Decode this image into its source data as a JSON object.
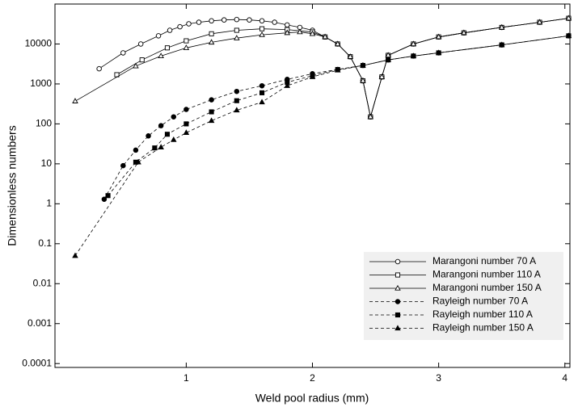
{
  "chart_data": {
    "type": "line",
    "log_y": true,
    "xlabel": "Weld pool radius (mm)",
    "ylabel": "Dimensionless numbers",
    "xlim": [
      -0.04,
      4.04
    ],
    "ylim": [
      8e-05,
      100000
    ],
    "xticks": [
      1,
      2,
      3,
      4
    ],
    "yticks": [
      0.0001,
      0.001,
      0.01,
      0.1,
      1,
      10,
      100,
      1000,
      10000
    ],
    "legend": "lower right",
    "series": [
      {
        "name": "Marangoni number 70 A",
        "color": "#000000",
        "marker": "circle",
        "filled": false,
        "line_style": "solid",
        "x": [
          0.31,
          0.5,
          0.64,
          0.78,
          0.87,
          0.95,
          1.02,
          1.1,
          1.2,
          1.3,
          1.4,
          1.5,
          1.6,
          1.7,
          1.8,
          1.9,
          2.0,
          2.1,
          2.2,
          2.3,
          2.4,
          2.46,
          2.55,
          2.6,
          2.8,
          3.0,
          3.2,
          3.5,
          3.8,
          4.03
        ],
        "values": [
          2400,
          6000,
          10000,
          16000,
          22000,
          27000,
          32000,
          35000,
          38000,
          40000,
          41000,
          40000,
          38000,
          35000,
          30000,
          26000,
          22000,
          15000,
          10000,
          4800,
          1200,
          150,
          1500,
          5200,
          10000,
          15000,
          19000,
          26000,
          35000,
          44000
        ]
      },
      {
        "name": "Marangoni number 110 A",
        "color": "#000000",
        "marker": "square",
        "filled": false,
        "line_style": "solid",
        "x": [
          0.45,
          0.65,
          0.85,
          1.0,
          1.2,
          1.4,
          1.6,
          1.8,
          2.0,
          2.1,
          2.2,
          2.3,
          2.4,
          2.46,
          2.55,
          2.6,
          2.8,
          3.0,
          3.2,
          3.5,
          3.8,
          4.03
        ],
        "values": [
          1700,
          4000,
          8000,
          12000,
          18000,
          22000,
          24000,
          23000,
          20000,
          15000,
          10000,
          4800,
          1200,
          150,
          1500,
          5200,
          10000,
          15000,
          19000,
          26000,
          35000,
          44000
        ]
      },
      {
        "name": "Marangoni number 150 A",
        "color": "#000000",
        "marker": "triangle",
        "filled": false,
        "line_style": "solid",
        "x": [
          0.12,
          0.6,
          0.8,
          1.0,
          1.2,
          1.4,
          1.6,
          1.8,
          1.9,
          2.0,
          2.1,
          2.2,
          2.3,
          2.4,
          2.46,
          2.55,
          2.6,
          2.8,
          3.0,
          3.2,
          3.5,
          3.8,
          4.03
        ],
        "values": [
          370,
          2800,
          5000,
          8000,
          11000,
          14000,
          17000,
          19000,
          20000,
          18000,
          15000,
          10000,
          4800,
          1200,
          150,
          1500,
          5200,
          10000,
          15000,
          19000,
          26000,
          35000,
          44000
        ]
      },
      {
        "name": "Rayleigh number 70 A",
        "color": "#000000",
        "marker": "circle",
        "filled": true,
        "line_style": "dashed",
        "x": [
          0.35,
          0.5,
          0.6,
          0.7,
          0.8,
          0.9,
          1.0,
          1.2,
          1.4,
          1.6,
          1.8,
          2.0,
          2.2,
          2.4,
          2.6,
          2.8,
          3.0,
          3.5,
          4.03
        ],
        "values": [
          1.3,
          9,
          22,
          50,
          90,
          150,
          230,
          400,
          650,
          900,
          1300,
          1800,
          2300,
          2900,
          4000,
          5000,
          6000,
          9500,
          16000
        ]
      },
      {
        "name": "Rayleigh number 110 A",
        "color": "#000000",
        "marker": "square",
        "filled": true,
        "line_style": "dashed",
        "x": [
          0.38,
          0.6,
          0.75,
          0.85,
          1.0,
          1.2,
          1.4,
          1.6,
          1.8,
          2.0,
          2.2,
          2.4,
          2.6,
          2.8,
          3.0,
          3.5,
          4.03
        ],
        "values": [
          1.6,
          11,
          25,
          55,
          100,
          200,
          380,
          600,
          1100,
          1600,
          2300,
          2900,
          4000,
          5000,
          6000,
          9500,
          16000
        ]
      },
      {
        "name": "Rayleigh number 150 A",
        "color": "#000000",
        "marker": "triangle",
        "filled": true,
        "line_style": "dashed",
        "x": [
          0.12,
          0.62,
          0.8,
          0.9,
          1.0,
          1.2,
          1.4,
          1.6,
          1.8,
          2.0,
          2.2,
          2.4,
          2.6,
          2.8,
          3.0,
          3.5,
          4.03
        ],
        "values": [
          0.05,
          11,
          26,
          40,
          60,
          120,
          220,
          350,
          900,
          1500,
          2200,
          2900,
          4000,
          5000,
          6000,
          9500,
          16000
        ]
      }
    ]
  }
}
